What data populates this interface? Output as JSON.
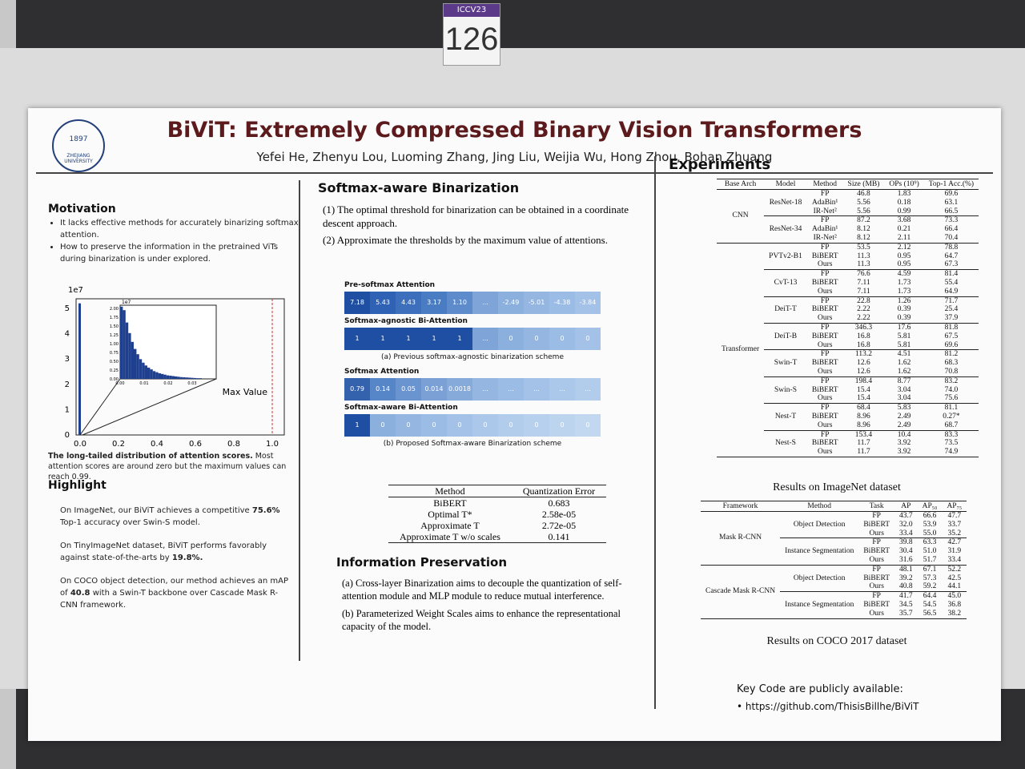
{
  "booth": {
    "conference": "ICCV23",
    "number": "126"
  },
  "header": {
    "logo_year": "1897",
    "logo_text": "ZHEJIANG UNIVERSITY",
    "title": "BiViT: Extremely Compressed Binary Vision Transformers",
    "authors": "Yefei He, Zhenyu Lou, Luoming Zhang, Jing Liu, Weijia Wu, Hong Zhou, Bohan Zhuang"
  },
  "motivation": {
    "heading": "Motivation",
    "bullets": [
      "It lacks effective methods for accurately binarizing softmax attention.",
      "How to preserve the information in the pretrained ViTs during binarization is under explored."
    ],
    "figure": {
      "exponent": "1e7",
      "yticks": [
        "0",
        "1",
        "2",
        "3",
        "4",
        "5"
      ],
      "xticks": [
        "0.0",
        "0.2",
        "0.4",
        "0.6",
        "0.8",
        "1.0"
      ],
      "main_values": [
        5.2
      ],
      "inset_exponent": "1e7",
      "inset_yticks": [
        "0.00",
        "0.25",
        "0.50",
        "0.75",
        "1.00",
        "1.25",
        "1.50",
        "1.75",
        "2.00"
      ],
      "inset_xticks": [
        "0.00",
        "0.01",
        "0.02",
        "0.03"
      ],
      "inset_values": [
        2.05,
        1.95,
        1.6,
        1.3,
        1.05,
        0.85,
        0.7,
        0.56,
        0.46,
        0.38,
        0.32,
        0.27,
        0.22,
        0.19,
        0.16,
        0.14,
        0.12,
        0.1,
        0.09,
        0.08,
        0.07,
        0.06,
        0.05,
        0.045,
        0.04,
        0.035,
        0.03,
        0.025,
        0.02,
        0.02
      ],
      "annotation": "Max Value"
    },
    "caption": [
      {
        "bold": "The long-tailed distribution of attention scores."
      },
      " Most attention scores are around zero but the maximum values can reach 0.99."
    ]
  },
  "highlight": {
    "heading": "Highlight",
    "paragraphs": [
      [
        "On ImageNet, our BiViT achieves a competitive ",
        {
          "bold": "75.6%"
        },
        " Top-1 accuracy over Swin-S model."
      ],
      [
        "On TinyImageNet dataset, BiViT performs favorably against state-of-the-arts by ",
        {
          "bold": "19.8%."
        }
      ],
      [
        "On COCO object detection, our method achieves an mAP of ",
        {
          "bold": "40.8"
        },
        " with a Swin-T backbone over Cascade Mask R-CNN framework."
      ]
    ]
  },
  "softmax_binarization": {
    "heading": "Softmax-aware Binarization",
    "items": [
      "(1)  The optimal threshold for binarization can be obtained in a coordinate descent approach.",
      "(2)  Approximate the thresholds by the maximum value of attentions."
    ],
    "figure": {
      "rows": [
        {
          "label": "Pre-softmax Attention",
          "cells": [
            "7.18",
            "5.43",
            "4.43",
            "3.17",
            "1.10",
            "...",
            "-2.49",
            "-5.01",
            "-4.38",
            "-3.84"
          ]
        },
        {
          "label": "Softmax-agnostic Bi-Attention",
          "cells": [
            "1",
            "1",
            "1",
            "1",
            "1",
            "...",
            "0",
            "0",
            "0",
            "0"
          ]
        },
        {
          "label": "Softmax Attention",
          "cells": [
            "0.79",
            "0.14",
            "0.05",
            "0.014",
            "0.0018",
            "...",
            "...",
            "...",
            "...",
            "..."
          ]
        },
        {
          "label": "Softmax-aware Bi-Attention",
          "cells": [
            "1",
            "0",
            "0",
            "0",
            "0",
            "0",
            "0",
            "0",
            "0",
            "0"
          ]
        }
      ],
      "caption_a": "(a) Previous softmax-agnostic binarization scheme",
      "caption_b": "(b) Proposed Softmax-aware Binarization scheme"
    },
    "table": {
      "columns": [
        "Method",
        "Quantization Error"
      ],
      "rows": [
        [
          "BiBERT",
          "0.683"
        ],
        [
          "Optimal T*",
          "2.58e-05"
        ],
        [
          "Approximate T",
          "2.72e-05"
        ],
        [
          "Approximate T w/o scales",
          "0.141"
        ]
      ]
    }
  },
  "information_preservation": {
    "heading": "Information Preservation",
    "paragraphs": [
      "(a) Cross-layer Binarization aims to decouple the quantization of self-attention module and MLP module to reduce mutual interference.",
      "(b) Parameterized Weight Scales aims to enhance the representational capacity of the model."
    ]
  },
  "experiments": {
    "heading": "Experiments",
    "imagenet": {
      "columns": [
        "Base Arch",
        "Model",
        "Method",
        "Size (MB)",
        "OPs (10⁹)",
        "Top-1 Acc.(%)"
      ],
      "groups": [
        {
          "arch": "CNN",
          "models": [
            {
              "name": "ResNet-18",
              "rows": [
                [
                  "FP",
                  "46.8",
                  "1.83",
                  "69.6"
                ],
                [
                  "AdaBin¹",
                  "5.56",
                  "0.18",
                  "63.1"
                ],
                [
                  "IR-Net²",
                  "5.56",
                  "0.99",
                  "66.5"
                ]
              ]
            },
            {
              "name": "ResNet-34",
              "rows": [
                [
                  "FP",
                  "87.2",
                  "3.68",
                  "73.3"
                ],
                [
                  "AdaBin¹",
                  "8.12",
                  "0.21",
                  "66.4"
                ],
                [
                  "IR-Net²",
                  "8.12",
                  "2.11",
                  "70.4"
                ]
              ]
            }
          ]
        },
        {
          "arch": "Transformer",
          "models": [
            {
              "name": "PVTv2-B1",
              "rows": [
                [
                  "FP",
                  "53.5",
                  "2.12",
                  "78.8"
                ],
                [
                  "BiBERT",
                  "11.3",
                  "0.95",
                  "64.7"
                ],
                [
                  "Ours",
                  "11.3",
                  "0.95",
                  "67.3"
                ]
              ]
            },
            {
              "name": "CvT-13",
              "rows": [
                [
                  "FP",
                  "76.6",
                  "4.59",
                  "81.4"
                ],
                [
                  "BiBERT",
                  "7.11",
                  "1.73",
                  "55.4"
                ],
                [
                  "Ours",
                  "7.11",
                  "1.73",
                  "64.9"
                ]
              ]
            },
            {
              "name": "DeiT-T",
              "rows": [
                [
                  "FP",
                  "22.8",
                  "1.26",
                  "71.7"
                ],
                [
                  "BiBERT",
                  "2.22",
                  "0.39",
                  "25.4"
                ],
                [
                  "Ours",
                  "2.22",
                  "0.39",
                  "37.9"
                ]
              ]
            },
            {
              "name": "DeiT-B",
              "rows": [
                [
                  "FP",
                  "346.3",
                  "17.6",
                  "81.8"
                ],
                [
                  "BiBERT",
                  "16.8",
                  "5.81",
                  "67.5"
                ],
                [
                  "Ours",
                  "16.8",
                  "5.81",
                  "69.6"
                ]
              ]
            },
            {
              "name": "Swin-T",
              "rows": [
                [
                  "FP",
                  "113.2",
                  "4.51",
                  "81.2"
                ],
                [
                  "BiBERT",
                  "12.6",
                  "1.62",
                  "68.3"
                ],
                [
                  "Ours",
                  "12.6",
                  "1.62",
                  "70.8"
                ]
              ]
            },
            {
              "name": "Swin-S",
              "rows": [
                [
                  "FP",
                  "198.4",
                  "8.77",
                  "83.2"
                ],
                [
                  "BiBERT",
                  "15.4",
                  "3.04",
                  "74.0"
                ],
                [
                  "Ours",
                  "15.4",
                  "3.04",
                  "75.6"
                ]
              ]
            },
            {
              "name": "Nest-T",
              "rows": [
                [
                  "FP",
                  "68.4",
                  "5.83",
                  "81.1"
                ],
                [
                  "BiBERT",
                  "8.96",
                  "2.49",
                  "0.27*"
                ],
                [
                  "Ours",
                  "8.96",
                  "2.49",
                  "68.7"
                ]
              ]
            },
            {
              "name": "Nest-S",
              "rows": [
                [
                  "FP",
                  "153.4",
                  "10.4",
                  "83.3"
                ],
                [
                  "BiBERT",
                  "11.7",
                  "3.92",
                  "73.5"
                ],
                [
                  "Ours",
                  "11.7",
                  "3.92",
                  "74.9"
                ]
              ]
            }
          ]
        }
      ],
      "caption": "Results on ImageNet dataset"
    },
    "coco": {
      "columns": [
        "Framework",
        "Method",
        "Task",
        "AP",
        "AP₅₀",
        "AP₇₅"
      ],
      "groups": [
        {
          "arch": "Mask R-CNN",
          "models": [
            {
              "name": "Object Detection",
              "rows": [
                [
                  "FP",
                  "43.7",
                  "66.6",
                  "47.7"
                ],
                [
                  "BiBERT",
                  "32.0",
                  "53.9",
                  "33.7"
                ],
                [
                  "Ours",
                  "33.4",
                  "55.0",
                  "35.2"
                ]
              ]
            },
            {
              "name": "Instance Segmentation",
              "rows": [
                [
                  "FP",
                  "39.8",
                  "63.3",
                  "42.7"
                ],
                [
                  "BiBERT",
                  "30.4",
                  "51.0",
                  "31.9"
                ],
                [
                  "Ours",
                  "31.6",
                  "51.7",
                  "33.4"
                ]
              ]
            }
          ]
        },
        {
          "arch": "Cascade Mask R-CNN",
          "models": [
            {
              "name": "Object Detection",
              "rows": [
                [
                  "FP",
                  "48.1",
                  "67.1",
                  "52.2"
                ],
                [
                  "BiBERT",
                  "39.2",
                  "57.3",
                  "42.5"
                ],
                [
                  "Ours",
                  "40.8",
                  "59.2",
                  "44.1"
                ]
              ]
            },
            {
              "name": "Instance Segmentation",
              "rows": [
                [
                  "FP",
                  "41.7",
                  "64.4",
                  "45.0"
                ],
                [
                  "BiBERT",
                  "34.5",
                  "54.5",
                  "36.8"
                ],
                [
                  "Ours",
                  "35.7",
                  "56.5",
                  "38.2"
                ]
              ]
            }
          ]
        }
      ],
      "caption": "Results on COCO 2017 dataset"
    },
    "code_note": "Key Code are publicly available:",
    "code_url": "https://github.com/ThisisBillhe/BiViT"
  }
}
